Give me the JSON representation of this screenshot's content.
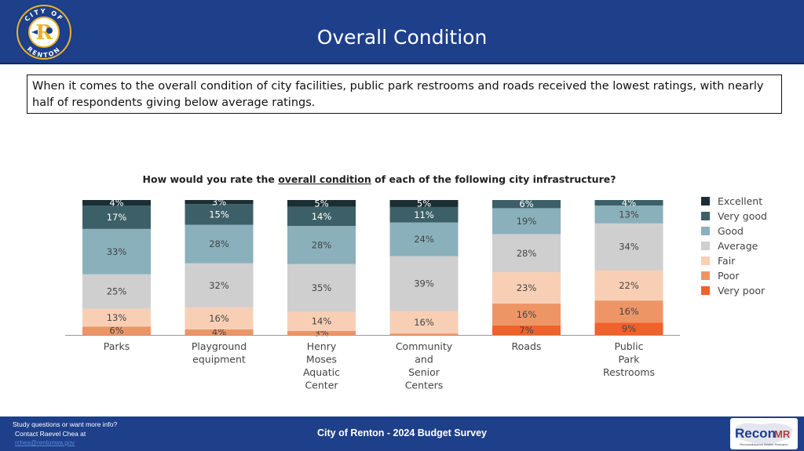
{
  "header": {
    "title": "Overall Condition",
    "logo_text_top": "CITY OF",
    "logo_text_bottom": "RENTON",
    "logo_letter": "R"
  },
  "callout": {
    "text": "When it comes to the overall condition of city facilities, public park restrooms and roads received the lowest ratings, with nearly half of respondents giving below average ratings."
  },
  "chart_question": {
    "prefix": "How would you rate the ",
    "emphasis": "overall condition",
    "suffix": " of each of the following city infrastructure?"
  },
  "chart_data": {
    "type": "bar",
    "stacked": true,
    "title": "How would you rate the overall condition of each of the following city infrastructure?",
    "categories": [
      [
        "Parks"
      ],
      [
        "Playground",
        "equipment"
      ],
      [
        "Henry",
        "Moses",
        "Aquatic",
        "Center"
      ],
      [
        "Community",
        "and",
        "Senior",
        "Centers"
      ],
      [
        "Roads"
      ],
      [
        "Public",
        "Park",
        "Restrooms"
      ]
    ],
    "series": [
      {
        "name": "Very poor",
        "color": "#f1612a",
        "values": [
          0,
          0,
          0,
          0,
          7,
          9
        ],
        "labels": [
          "",
          "",
          "",
          "",
          "7%",
          "9%"
        ]
      },
      {
        "name": "Poor",
        "color": "#ee9566",
        "values": [
          6,
          4,
          3,
          1,
          16,
          16
        ],
        "labels": [
          "6%",
          "4%",
          "3%",
          "",
          "16%",
          "16%"
        ]
      },
      {
        "name": "Fair",
        "color": "#f8cfb5",
        "values": [
          13,
          16,
          14,
          16,
          23,
          22
        ],
        "labels": [
          "13%",
          "16%",
          "14%",
          "16%",
          "23%",
          "22%"
        ]
      },
      {
        "name": "Average",
        "color": "#cfcfcf",
        "values": [
          25,
          32,
          35,
          39,
          28,
          34
        ],
        "labels": [
          "25%",
          "32%",
          "35%",
          "39%",
          "28%",
          "34%"
        ]
      },
      {
        "name": "Good",
        "color": "#8ab0bc",
        "values": [
          33,
          28,
          28,
          24,
          19,
          13
        ],
        "labels": [
          "33%",
          "28%",
          "28%",
          "24%",
          "19%",
          "13%"
        ]
      },
      {
        "name": "Very good",
        "color": "#3d6068",
        "values": [
          17,
          15,
          14,
          11,
          6,
          4
        ],
        "labels": [
          "17%",
          "15%",
          "14%",
          "11%",
          "6%",
          "4%"
        ]
      },
      {
        "name": "Excellent",
        "color": "#1b2e33",
        "values": [
          4,
          3,
          5,
          5,
          0,
          0
        ],
        "labels": [
          "4%",
          "3%",
          "5%",
          "5%",
          "",
          ""
        ]
      }
    ],
    "ylim": [
      0,
      100
    ],
    "legend": [
      "Excellent",
      "Very good",
      "Good",
      "Average",
      "Fair",
      "Poor",
      "Very poor"
    ],
    "legend_position": "right"
  },
  "footer": {
    "line1": "Study questions or want more info?",
    "line2": "Contact Raevel Chea at",
    "link": "rchea@rentonwa.gov",
    "center": "City of Renton - 2024 Budget Survey",
    "brand": "Recon",
    "brand_accent": "MR",
    "tagline": "Reconnaissance Market Research"
  }
}
